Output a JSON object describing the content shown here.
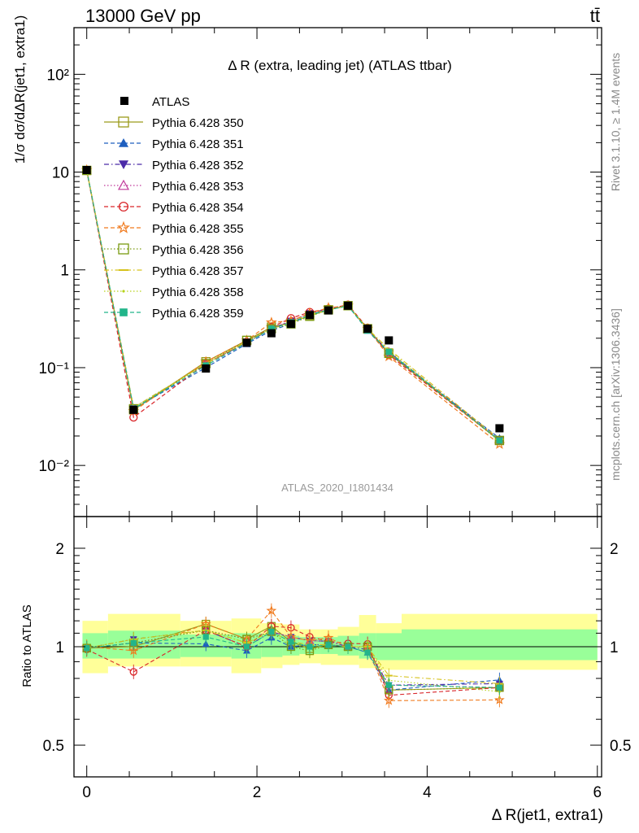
{
  "header": {
    "left": "13000 GeV pp",
    "right": "tt̄"
  },
  "side_labels": {
    "rivet": "Rivet 3.1.10, ≥ 1.4M events",
    "mcplots": "mcplots.cern.ch [arXiv:1306.3436]"
  },
  "chart_data": [
    {
      "panel": "main",
      "type": "line",
      "title": "Δ R (extra, leading jet) (ATLAS ttbar)",
      "watermark": "ATLAS_2020_I1801434",
      "ylabel": "1/σ dσ/dΔR(jet1, extra1)",
      "xlabel": "Δ R(jet1, extra1)",
      "x_scale": "linear",
      "y_scale": "log",
      "xlim": [
        -0.15,
        6.05
      ],
      "ylim": [
        0.003,
        300
      ],
      "y_ticks": [
        {
          "value": 0.01,
          "label": "10⁻²"
        },
        {
          "value": 0.1,
          "label": "10⁻¹"
        },
        {
          "value": 1,
          "label": "1"
        },
        {
          "value": 10,
          "label": "10"
        },
        {
          "value": 100,
          "label": "10²"
        }
      ],
      "legend_position": "top-left",
      "x": [
        0.0,
        0.55,
        1.4,
        1.88,
        2.17,
        2.4,
        2.62,
        2.84,
        3.07,
        3.3,
        3.55,
        4.85
      ],
      "data": {
        "name": "ATLAS",
        "values": [
          10.5,
          0.037,
          0.098,
          0.18,
          0.225,
          0.28,
          0.345,
          0.385,
          0.43,
          0.25,
          0.19,
          0.024
        ]
      },
      "series": [
        {
          "name": "Pythia 6.428 350",
          "color": "#9a9a1a",
          "marker": "open-square",
          "dash": "solid",
          "values": [
            10.4,
            0.037,
            0.115,
            0.19,
            0.26,
            0.29,
            0.34,
            0.39,
            0.43,
            0.25,
            0.14,
            0.018
          ]
        },
        {
          "name": "Pythia 6.428 351",
          "color": "#1f5fbf",
          "marker": "filled-triangle-up",
          "dash": "dashed",
          "values": [
            10.4,
            0.038,
            0.1,
            0.175,
            0.24,
            0.28,
            0.35,
            0.39,
            0.43,
            0.24,
            0.14,
            0.019
          ]
        },
        {
          "name": "Pythia 6.428 352",
          "color": "#4b2aa8",
          "marker": "filled-triangle-down",
          "dash": "dashdot",
          "values": [
            10.4,
            0.039,
            0.11,
            0.18,
            0.25,
            0.3,
            0.36,
            0.4,
            0.43,
            0.245,
            0.145,
            0.0185
          ]
        },
        {
          "name": "Pythia 6.428 353",
          "color": "#c0399a",
          "marker": "open-triangle-up",
          "dash": "dotted",
          "values": [
            10.4,
            0.038,
            0.11,
            0.19,
            0.25,
            0.3,
            0.36,
            0.4,
            0.43,
            0.25,
            0.145,
            0.018
          ]
        },
        {
          "name": "Pythia 6.428 354",
          "color": "#d9262a",
          "marker": "open-circle",
          "dash": "dashed",
          "values": [
            10.3,
            0.031,
            0.11,
            0.18,
            0.26,
            0.32,
            0.37,
            0.4,
            0.44,
            0.255,
            0.135,
            0.018
          ]
        },
        {
          "name": "Pythia 6.428 355",
          "color": "#f07b1f",
          "marker": "open-star",
          "dash": "dashed",
          "values": [
            10.5,
            0.036,
            0.115,
            0.19,
            0.29,
            0.3,
            0.36,
            0.41,
            0.43,
            0.25,
            0.13,
            0.0165
          ]
        },
        {
          "name": "Pythia 6.428 356",
          "color": "#7a9a10",
          "marker": "open-square",
          "dash": "dotted",
          "values": [
            10.4,
            0.038,
            0.11,
            0.19,
            0.25,
            0.28,
            0.335,
            0.39,
            0.43,
            0.25,
            0.14,
            0.018
          ]
        },
        {
          "name": "Pythia 6.428 357",
          "color": "#d6c21c",
          "marker": "dash",
          "dash": "dashdot",
          "values": [
            10.4,
            0.039,
            0.11,
            0.185,
            0.25,
            0.29,
            0.35,
            0.39,
            0.43,
            0.25,
            0.155,
            0.0185
          ]
        },
        {
          "name": "Pythia 6.428 358",
          "color": "#b6d21a",
          "marker": "dot",
          "dash": "dotted",
          "values": [
            10.4,
            0.039,
            0.11,
            0.185,
            0.25,
            0.29,
            0.345,
            0.39,
            0.43,
            0.25,
            0.15,
            0.0175
          ]
        },
        {
          "name": "Pythia 6.428 359",
          "color": "#22b58a",
          "marker": "filled-square",
          "dash": "dashed",
          "values": [
            10.4,
            0.038,
            0.105,
            0.18,
            0.25,
            0.29,
            0.345,
            0.39,
            0.43,
            0.24,
            0.145,
            0.018
          ]
        }
      ]
    },
    {
      "panel": "ratio",
      "type": "line",
      "ylabel": "Ratio to ATLAS",
      "xlabel": "Δ R(jet1, extra1)",
      "y_scale": "log",
      "xlim": [
        -0.15,
        6.05
      ],
      "ylim": [
        0.4,
        2.5
      ],
      "x_ticks": [
        {
          "value": 0,
          "label": "0"
        },
        {
          "value": 2,
          "label": "2"
        },
        {
          "value": 4,
          "label": "4"
        },
        {
          "value": 6,
          "label": "6"
        }
      ],
      "y_ticks": [
        {
          "value": 0.5,
          "label": "0.5"
        },
        {
          "value": 1,
          "label": "1"
        },
        {
          "value": 2,
          "label": "2"
        }
      ],
      "reference_line": 1,
      "bins": [
        -0.05,
        0.25,
        1.1,
        1.7,
        2.05,
        2.3,
        2.5,
        2.75,
        2.95,
        3.2,
        3.4,
        3.7,
        6.0
      ],
      "band_outer": [
        [
          0.83,
          1.2
        ],
        [
          0.87,
          1.26
        ],
        [
          0.87,
          1.2
        ],
        [
          0.83,
          1.22
        ],
        [
          0.86,
          1.18
        ],
        [
          0.88,
          1.17
        ],
        [
          0.89,
          1.13
        ],
        [
          0.88,
          1.13
        ],
        [
          0.88,
          1.15
        ],
        [
          0.86,
          1.25
        ],
        [
          0.85,
          1.18
        ],
        [
          0.85,
          1.26
        ]
      ],
      "band_inner": [
        [
          0.92,
          1.1
        ],
        [
          0.92,
          1.12
        ],
        [
          0.93,
          1.09
        ],
        [
          0.92,
          1.1
        ],
        [
          0.93,
          1.09
        ],
        [
          0.94,
          1.08
        ],
        [
          0.95,
          1.07
        ],
        [
          0.95,
          1.07
        ],
        [
          0.94,
          1.08
        ],
        [
          0.92,
          1.1
        ],
        [
          0.91,
          1.1
        ],
        [
          0.91,
          1.13
        ]
      ]
    }
  ]
}
